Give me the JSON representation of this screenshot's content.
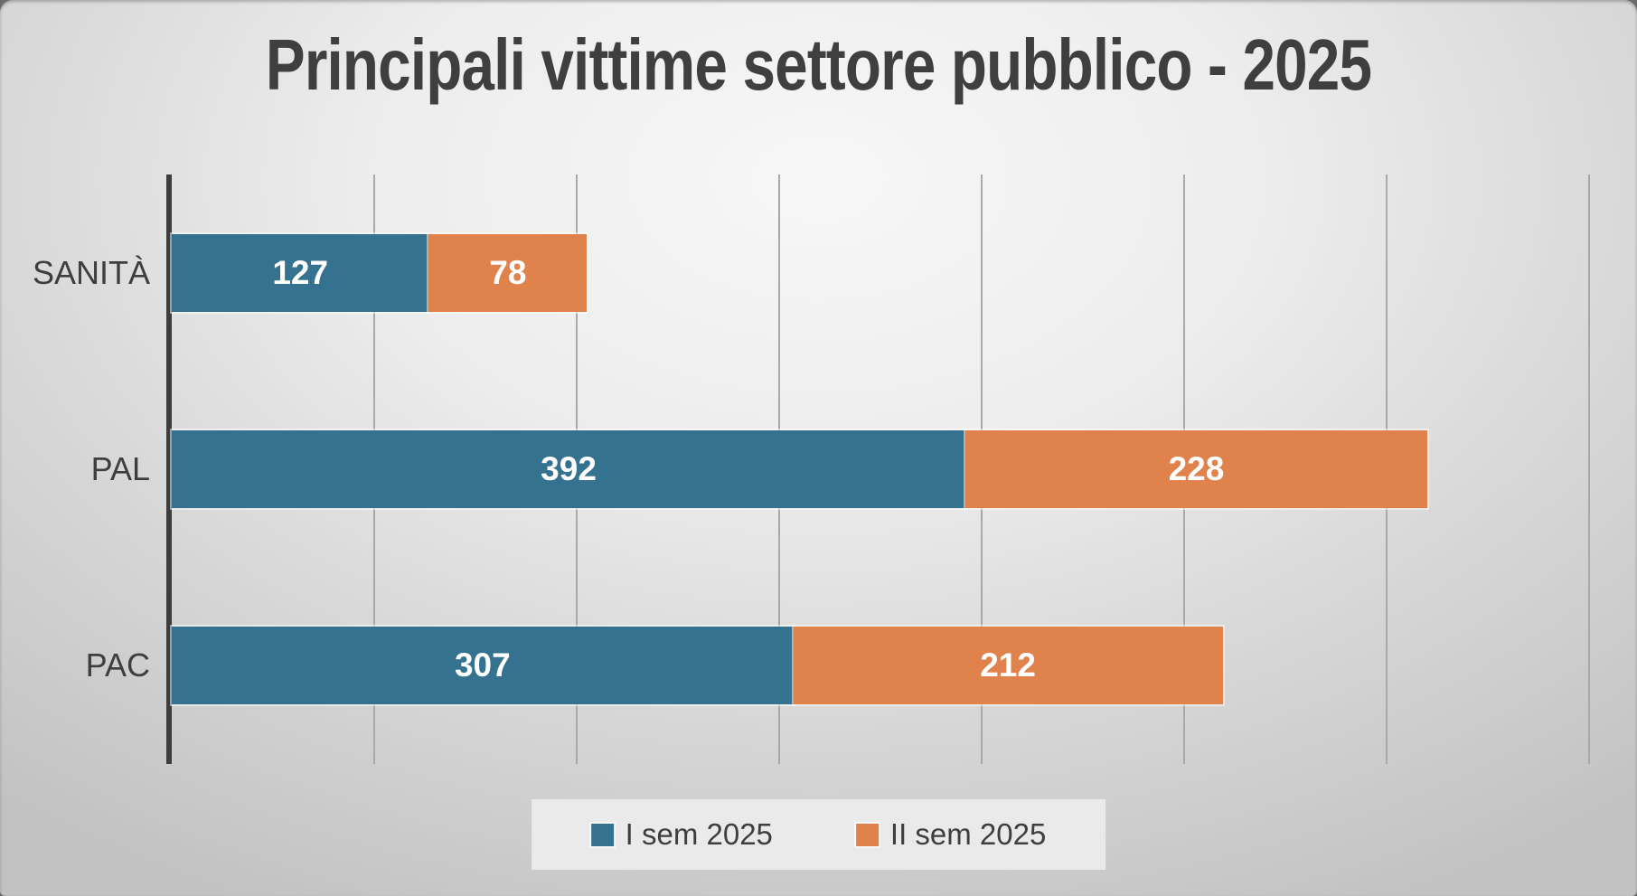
{
  "chart_data": {
    "type": "bar",
    "orientation": "horizontal",
    "stacked": true,
    "title": "Principali vittime settore pubblico - 2025",
    "categories": [
      "SANITÀ",
      "PAL",
      "PAC"
    ],
    "series": [
      {
        "name": "I sem 2025",
        "color": "#34728F",
        "values": [
          127,
          392,
          307
        ]
      },
      {
        "name": "II sem 2025",
        "color": "#E0824B",
        "values": [
          78,
          228,
          212
        ]
      }
    ],
    "xlim": [
      0,
      700
    ],
    "gridline_interval": 100,
    "grid": "vertical-lines",
    "legend_position": "bottom-center",
    "value_label_style": "white-bold-inside",
    "colors": {
      "axis_line": "#3d3d3d",
      "gridline": "#a9a9a9",
      "text": "#3e3e3e",
      "title": "#3f3f3f",
      "legend_background": "#eaeaea",
      "background_center": "#f7f7f7",
      "background_edge": "#c2c2c2"
    }
  }
}
